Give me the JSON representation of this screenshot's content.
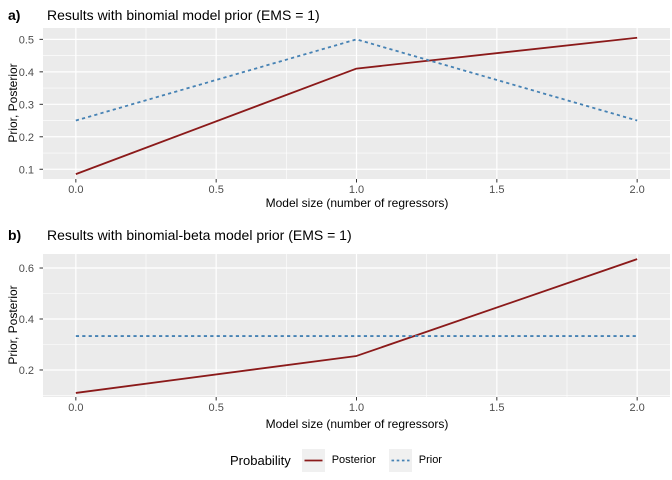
{
  "colors": {
    "panel_background": "#EBEBEB",
    "gridline_major": "#FFFFFF",
    "gridline_minor": "#FFFFFF",
    "tick_mark": "#333333",
    "tick_label": "#4D4D4D",
    "axis_title": "#000000",
    "posterior": "#8B1A1A",
    "prior": "#4682B4",
    "legend_key_background": "#F0F0F0"
  },
  "chart_data": [
    {
      "type": "line",
      "panel_label": "a)",
      "title": "Results with binomial model prior (EMS = 1)",
      "xlabel": "Model size (number of regressors)",
      "ylabel": "Prior, Posterior",
      "x": [
        0,
        1,
        2
      ],
      "series": [
        {
          "name": "Posterior",
          "values": [
            0.085,
            0.41,
            0.505
          ],
          "color": "#8B1A1A",
          "dash": "solid"
        },
        {
          "name": "Prior",
          "values": [
            0.25,
            0.5,
            0.25
          ],
          "color": "#4682B4",
          "dash": "dotted"
        }
      ],
      "xticks": [
        0,
        0.5,
        1,
        1.5,
        2
      ],
      "yticks": [
        0.1,
        0.2,
        0.3,
        0.4,
        0.5
      ],
      "xlim": [
        -0.117,
        2.117
      ],
      "ylim": [
        0.07,
        0.535
      ],
      "grid": true,
      "legend_position": "none"
    },
    {
      "type": "line",
      "panel_label": "b)",
      "title": "Results with binomial-beta model prior (EMS = 1)",
      "xlabel": "Model size (number of regressors)",
      "ylabel": "Prior, Posterior",
      "x": [
        0,
        1,
        2
      ],
      "series": [
        {
          "name": "Posterior",
          "values": [
            0.11,
            0.255,
            0.635
          ],
          "color": "#8B1A1A",
          "dash": "solid"
        },
        {
          "name": "Prior",
          "values": [
            0.333,
            0.333,
            0.333
          ],
          "color": "#4682B4",
          "dash": "dotted"
        }
      ],
      "xticks": [
        0,
        0.5,
        1,
        1.5,
        2
      ],
      "yticks": [
        0.2,
        0.4,
        0.6
      ],
      "xlim": [
        -0.117,
        2.117
      ],
      "ylim": [
        0.094,
        0.655
      ],
      "grid": true,
      "legend_position": "bottom"
    }
  ],
  "legend": {
    "title": "Probability",
    "items": [
      {
        "label": "Posterior",
        "color": "#8B1A1A",
        "dash": "solid"
      },
      {
        "label": "Prior",
        "color": "#4682B4",
        "dash": "dotted"
      }
    ]
  }
}
